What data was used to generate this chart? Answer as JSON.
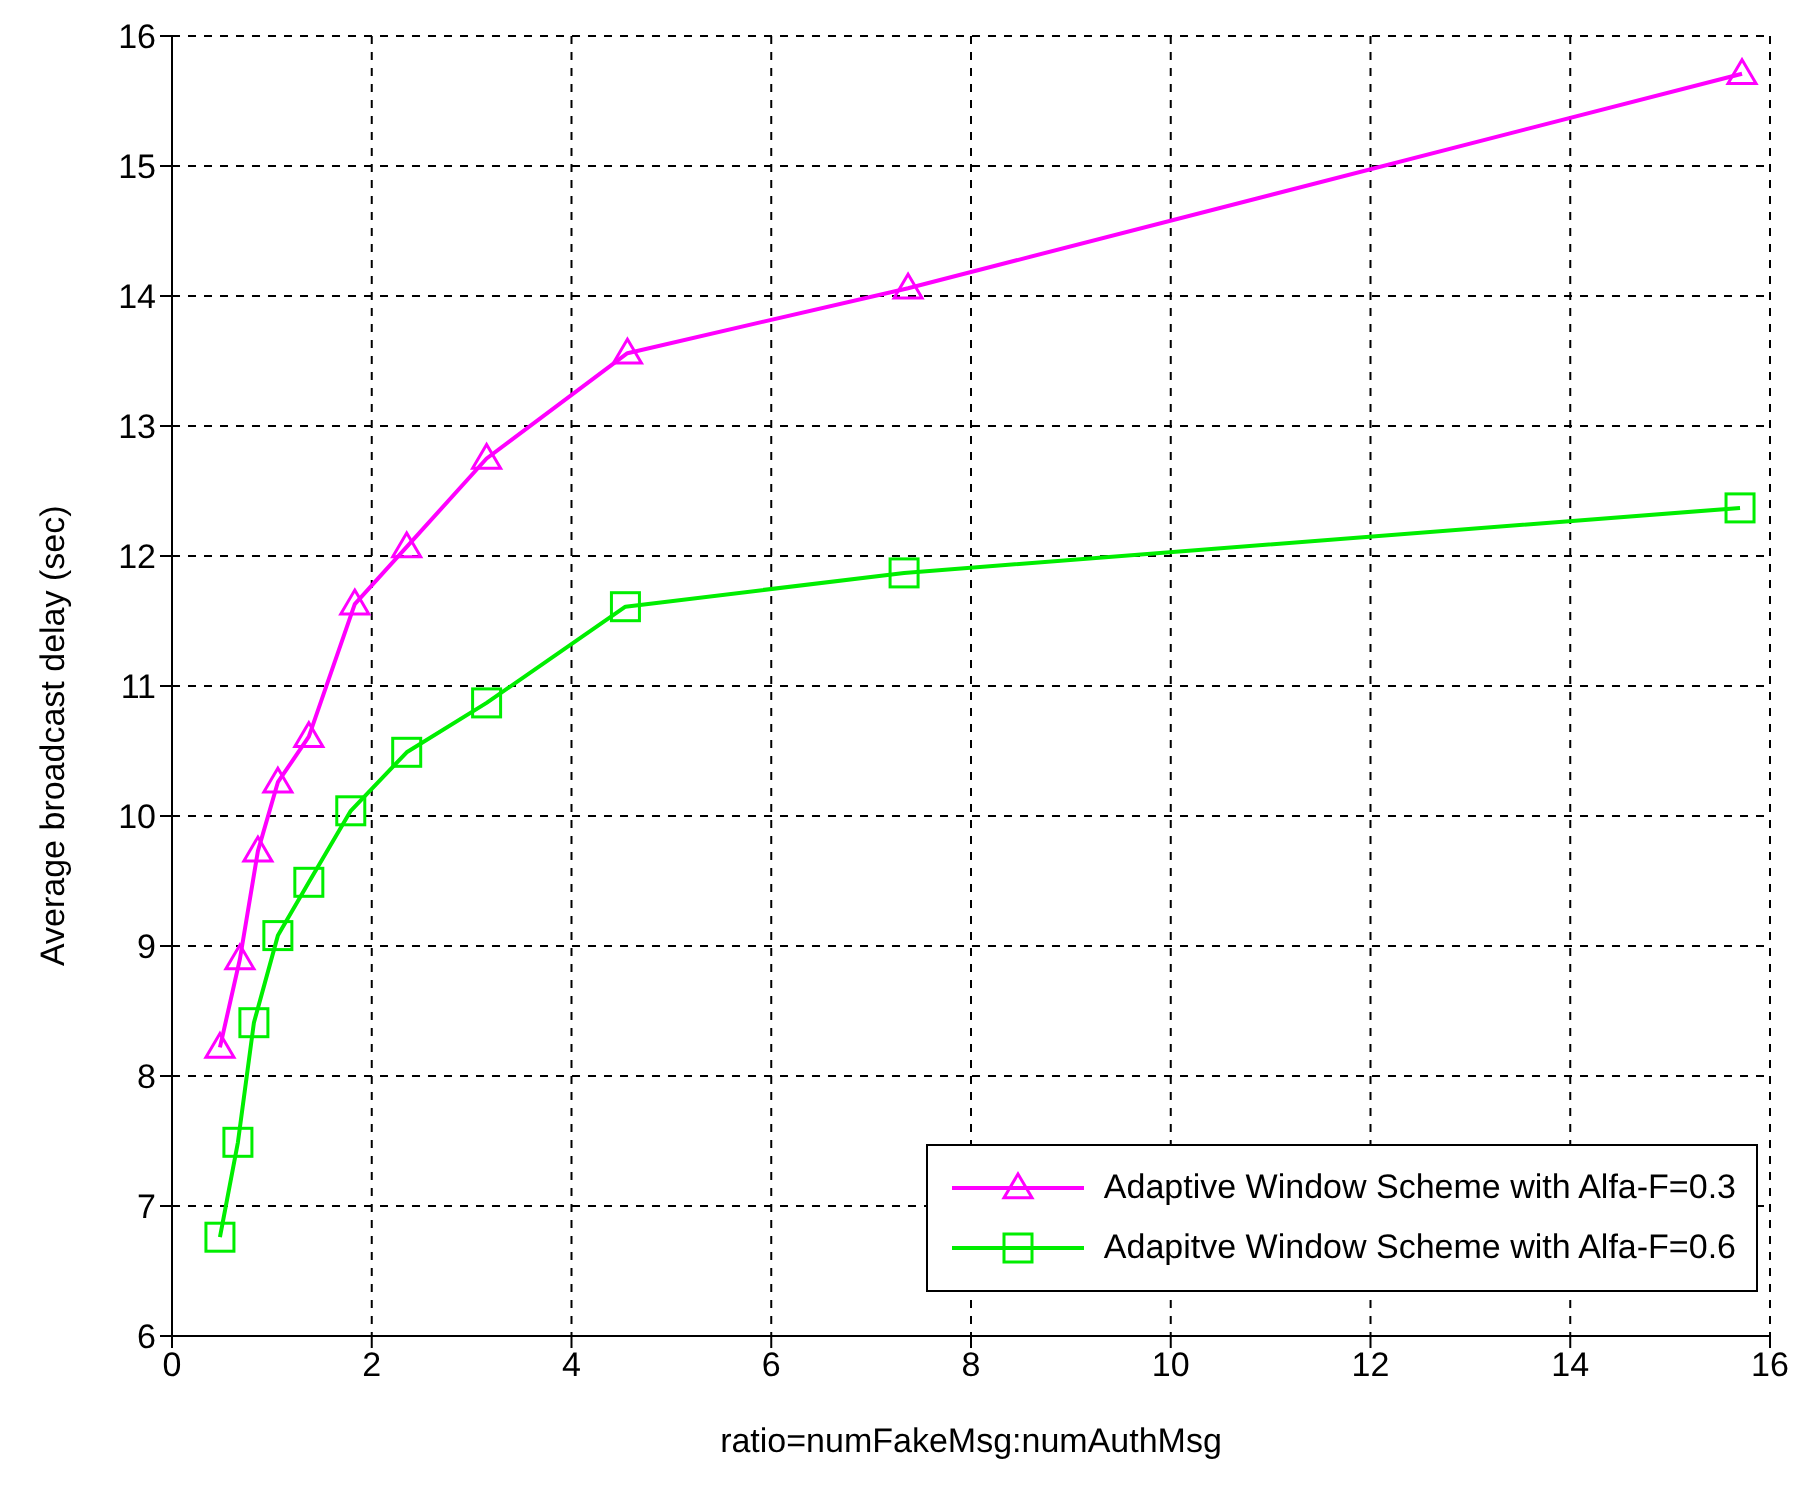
{
  "chart_data": {
    "type": "line",
    "xlabel": "ratio=numFakeMsg:numAuthMsg",
    "ylabel": "Average broadcast delay (sec)",
    "xlim": [
      0,
      16
    ],
    "xticks": [
      0,
      2,
      4,
      6,
      8,
      10,
      12,
      14,
      16
    ],
    "ylim": [
      6,
      16
    ],
    "yticks": [
      6,
      7,
      8,
      9,
      10,
      11,
      12,
      13,
      14,
      15,
      16
    ],
    "grid": true,
    "legend": "bottom right",
    "line_style": "solid",
    "series": [
      {
        "name": "Adaptive Window Scheme with Alfa-F=0.3",
        "color": "#ff00ff",
        "marker": "triangle",
        "x": [
          0.48,
          0.68,
          0.86,
          1.06,
          1.37,
          1.83,
          2.35,
          3.15,
          4.56,
          7.37,
          15.72
        ],
        "values": [
          8.22,
          8.9,
          9.73,
          10.26,
          10.61,
          11.63,
          12.07,
          12.75,
          13.56,
          14.06,
          15.71
        ]
      },
      {
        "name": "Adapitve Window Scheme with Alfa-F=0.6",
        "color": "#00ee00",
        "marker": "square",
        "x": [
          0.48,
          0.66,
          0.82,
          1.06,
          1.37,
          1.79,
          2.35,
          3.15,
          4.54,
          7.33,
          15.7
        ],
        "values": [
          6.76,
          7.49,
          8.41,
          9.08,
          9.49,
          10.04,
          10.49,
          10.87,
          11.61,
          11.87,
          12.37
        ]
      }
    ]
  }
}
